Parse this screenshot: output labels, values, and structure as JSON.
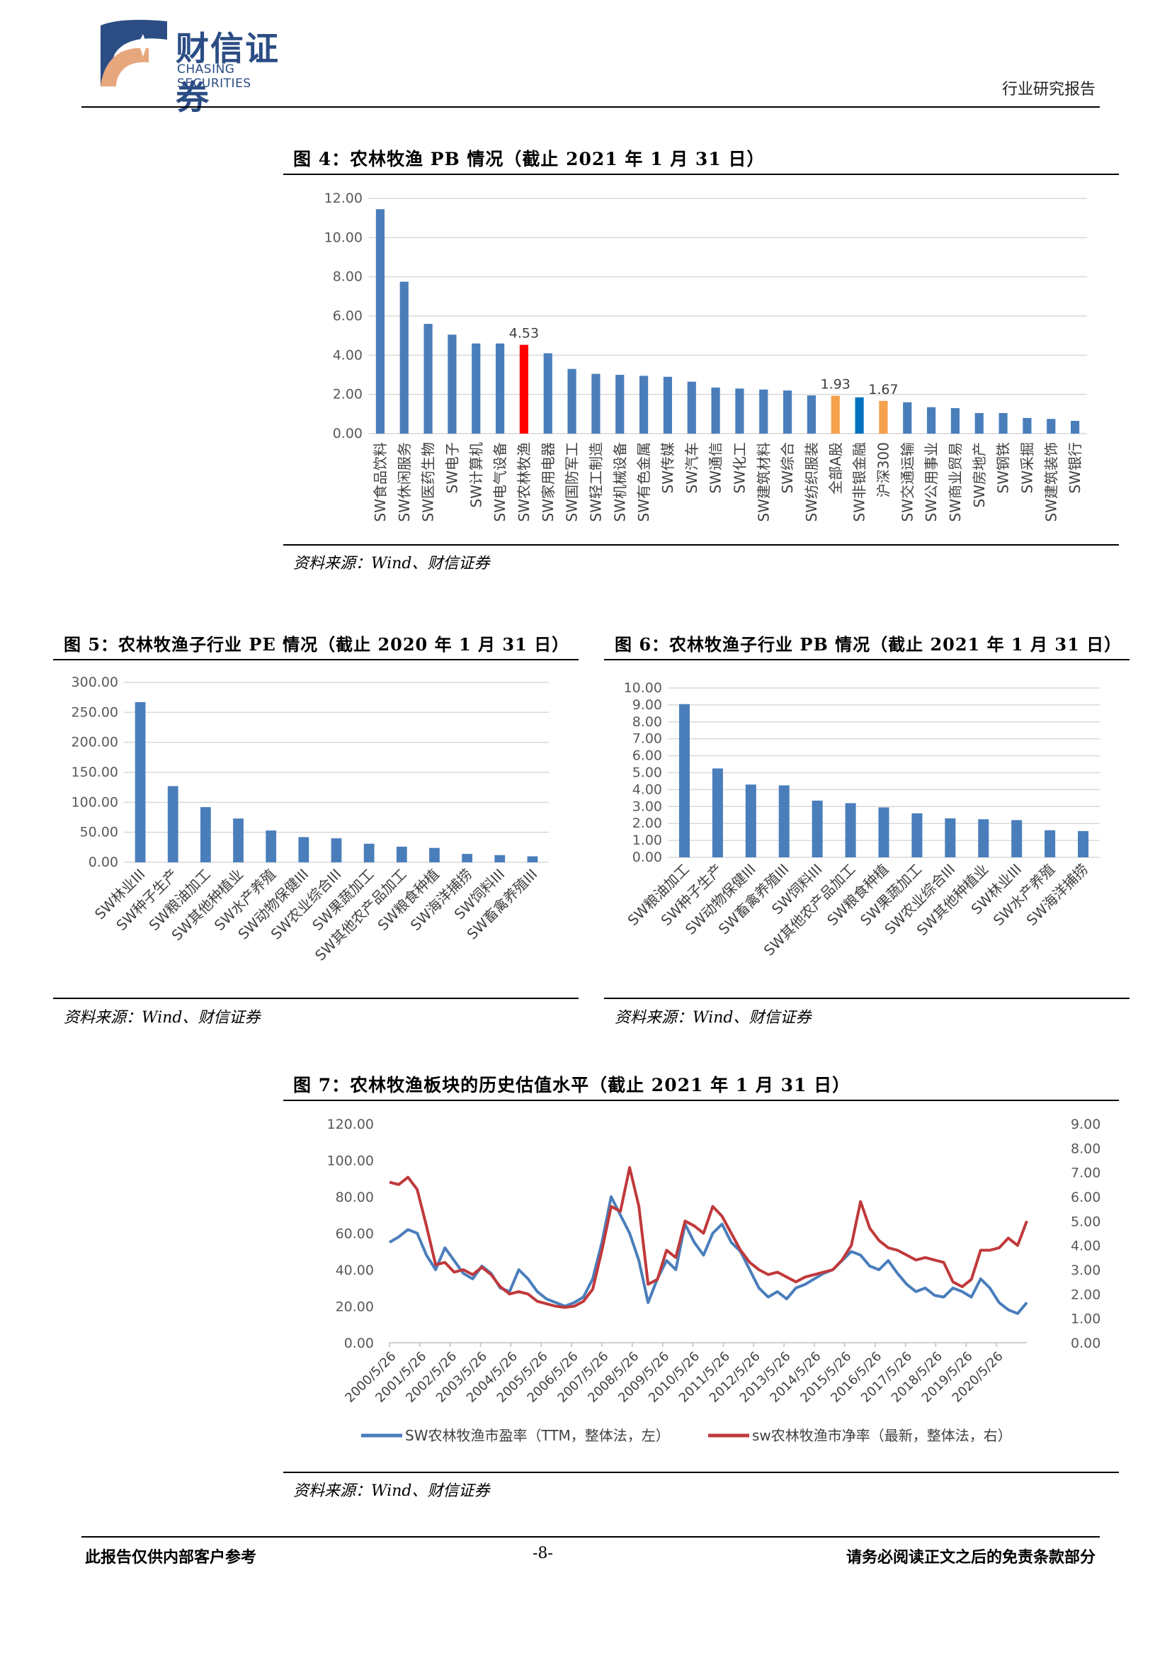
{
  "header": {
    "logo_cn": "财信证券",
    "logo_en": "CHASING SECURITIES",
    "report_type": "行业研究报告"
  },
  "figures": {
    "fig4": {
      "title": "图 4：农林牧渔 PB 情况（截止 2021 年 1 月 31 日）",
      "source": "资料来源：Wind、财信证券"
    },
    "fig5": {
      "title": "图 5：农林牧渔子行业 PE 情况（截止 2020 年 1 月 31 日）",
      "source": "资料来源：Wind、财信证券"
    },
    "fig6": {
      "title": "图 6：农林牧渔子行业 PB 情况（截止 2021 年 1 月 31 日）",
      "source": "资料来源：Wind、财信证券"
    },
    "fig7": {
      "title": "图 7：农林牧渔板块的历史估值水平（截止 2021 年 1 月 31 日）",
      "source": "资料来源：Wind、财信证券"
    }
  },
  "footer": {
    "left": "此报告仅供内部客户参考",
    "page": "-8-",
    "right": "请务必阅读正文之后的免责条款部分"
  },
  "colors": {
    "bar": "#4a7ebb",
    "highlight_red": "#ff0000",
    "highlight_orange": "#f5a04a",
    "highlight_blue": "#0070c0",
    "pe_line": "#4a7ebb",
    "pb_line": "#c0393b",
    "brand": "#2b4d84"
  },
  "chart_data": [
    {
      "id": "fig4",
      "type": "bar",
      "ylim": [
        0,
        12
      ],
      "yticks": [
        "0.00",
        "2.00",
        "4.00",
        "6.00",
        "8.00",
        "10.00",
        "12.00"
      ],
      "grid": true,
      "categories": [
        "SW食品饮料",
        "SW休闲服务",
        "SW医药生物",
        "SW电子",
        "SW计算机",
        "SW电气设备",
        "SW农林牧渔",
        "SW家用电器",
        "SW国防军工",
        "SW轻工制造",
        "SW机械设备",
        "SW有色金属",
        "SW传媒",
        "SW汽车",
        "SW通信",
        "SW化工",
        "SW建筑材料",
        "SW综合",
        "SW纺织服装",
        "全部A股",
        "SW非银金融",
        "沪深300",
        "SW交通运输",
        "SW公用事业",
        "SW商业贸易",
        "SW房地产",
        "SW钢铁",
        "SW采掘",
        "SW建筑装饰",
        "SW银行"
      ],
      "values": [
        11.45,
        7.75,
        5.6,
        5.05,
        4.6,
        4.6,
        4.53,
        4.1,
        3.3,
        3.05,
        3.0,
        2.95,
        2.9,
        2.65,
        2.35,
        2.3,
        2.25,
        2.2,
        1.95,
        1.93,
        1.85,
        1.67,
        1.6,
        1.35,
        1.3,
        1.05,
        1.05,
        0.8,
        0.75,
        0.65
      ],
      "bar_colors": {
        "6": "highlight_red",
        "19": "highlight_orange",
        "20": "highlight_blue",
        "21": "highlight_orange"
      },
      "data_labels": {
        "6": "4.53",
        "19": "1.93",
        "21": "1.67"
      }
    },
    {
      "id": "fig5",
      "type": "bar",
      "ylim": [
        0,
        300
      ],
      "yticks": [
        "0.00",
        "50.00",
        "100.00",
        "150.00",
        "200.00",
        "250.00",
        "300.00"
      ],
      "grid": true,
      "categories": [
        "SW林业III",
        "SW种子生产",
        "SW粮油加工",
        "SW其他种植业",
        "SW水产养殖",
        "SW动物保健III",
        "SW农业综合III",
        "SW果蔬加工",
        "SW其他农产品加工",
        "SW粮食种植",
        "SW海洋捕捞",
        "SW饲料III",
        "SW畜禽养殖III"
      ],
      "values": [
        267,
        127,
        92,
        73,
        53,
        42,
        40,
        31,
        26,
        24,
        14,
        12,
        10
      ]
    },
    {
      "id": "fig6",
      "type": "bar",
      "ylim": [
        0,
        10
      ],
      "yticks": [
        "0.00",
        "1.00",
        "2.00",
        "3.00",
        "4.00",
        "5.00",
        "6.00",
        "7.00",
        "8.00",
        "9.00",
        "10.00"
      ],
      "grid": true,
      "categories": [
        "SW粮油加工",
        "SW种子生产",
        "SW动物保健III",
        "SW畜禽养殖III",
        "SW饲料III",
        "SW其他农产品加工",
        "SW粮食种植",
        "SW果蔬加工",
        "SW农业综合III",
        "SW其他种植业",
        "SW林业III",
        "SW水产养殖",
        "SW海洋捕捞"
      ],
      "values": [
        9.05,
        5.25,
        4.3,
        4.25,
        3.35,
        3.2,
        2.95,
        2.6,
        2.3,
        2.25,
        2.2,
        1.6,
        1.55
      ]
    },
    {
      "id": "fig7",
      "type": "line",
      "x_ticks": [
        "2000/5/26",
        "2001/5/26",
        "2002/5/26",
        "2003/5/26",
        "2004/5/26",
        "2005/5/26",
        "2006/5/26",
        "2007/5/26",
        "2008/5/26",
        "2009/5/26",
        "2010/5/26",
        "2011/5/26",
        "2012/5/26",
        "2013/5/26",
        "2014/5/26",
        "2015/5/26",
        "2016/5/26",
        "2017/5/26",
        "2018/5/26",
        "2019/5/26",
        "2020/5/26"
      ],
      "ylim_left": [
        0,
        120
      ],
      "yticks_left": [
        "0.00",
        "20.00",
        "40.00",
        "60.00",
        "80.00",
        "100.00",
        "120.00"
      ],
      "ylim_right": [
        0,
        9
      ],
      "yticks_right": [
        "0.00",
        "1.00",
        "2.00",
        "3.00",
        "4.00",
        "5.00",
        "6.00",
        "7.00",
        "8.00",
        "9.00"
      ],
      "x": [
        2000.4,
        2000.7,
        2001.0,
        2001.3,
        2001.6,
        2001.9,
        2002.2,
        2002.5,
        2002.8,
        2003.1,
        2003.4,
        2003.7,
        2004.0,
        2004.3,
        2004.6,
        2004.9,
        2005.2,
        2005.5,
        2005.8,
        2006.1,
        2006.4,
        2006.7,
        2007.0,
        2007.3,
        2007.6,
        2007.9,
        2008.2,
        2008.5,
        2008.8,
        2009.1,
        2009.4,
        2009.7,
        2010.0,
        2010.3,
        2010.6,
        2010.9,
        2011.2,
        2011.5,
        2011.8,
        2012.1,
        2012.4,
        2012.7,
        2013.0,
        2013.3,
        2013.6,
        2013.9,
        2014.2,
        2014.5,
        2014.8,
        2015.1,
        2015.4,
        2015.7,
        2016.0,
        2016.3,
        2016.6,
        2016.9,
        2017.2,
        2017.5,
        2017.8,
        2018.1,
        2018.4,
        2018.7,
        2019.0,
        2019.3,
        2019.6,
        2019.9,
        2020.2,
        2020.5,
        2020.8,
        2021.1
      ],
      "series": [
        {
          "name": "SW农林牧渔市盈率（TTM，整体法，左）",
          "axis": "left",
          "values": [
            55,
            58,
            62,
            60,
            48,
            40,
            52,
            45,
            38,
            35,
            42,
            38,
            30,
            28,
            40,
            35,
            28,
            24,
            22,
            20,
            22,
            25,
            35,
            55,
            80,
            70,
            60,
            45,
            22,
            35,
            45,
            40,
            65,
            55,
            48,
            60,
            65,
            55,
            50,
            40,
            30,
            25,
            28,
            24,
            30,
            32,
            35,
            38,
            40,
            45,
            50,
            48,
            42,
            40,
            45,
            38,
            32,
            28,
            30,
            26,
            25,
            30,
            28,
            25,
            35,
            30,
            22,
            18,
            16,
            22
          ]
        },
        {
          "name": "sw农林牧渔市净率（最新，整体法，右）",
          "axis": "right",
          "values": [
            6.6,
            6.5,
            6.8,
            6.3,
            4.8,
            3.2,
            3.3,
            2.9,
            3.0,
            2.8,
            3.1,
            2.8,
            2.3,
            2.0,
            2.1,
            2.0,
            1.7,
            1.6,
            1.5,
            1.45,
            1.5,
            1.7,
            2.2,
            3.8,
            5.6,
            5.4,
            7.2,
            5.6,
            2.4,
            2.6,
            3.8,
            3.5,
            5.0,
            4.8,
            4.5,
            5.6,
            5.2,
            4.5,
            3.8,
            3.3,
            3.0,
            2.8,
            2.9,
            2.7,
            2.5,
            2.7,
            2.8,
            2.9,
            3.0,
            3.4,
            4.0,
            5.8,
            4.7,
            4.2,
            3.9,
            3.8,
            3.6,
            3.4,
            3.5,
            3.4,
            3.3,
            2.5,
            2.3,
            2.6,
            3.8,
            3.8,
            3.9,
            4.3,
            4.0,
            5.0
          ]
        }
      ]
    }
  ]
}
